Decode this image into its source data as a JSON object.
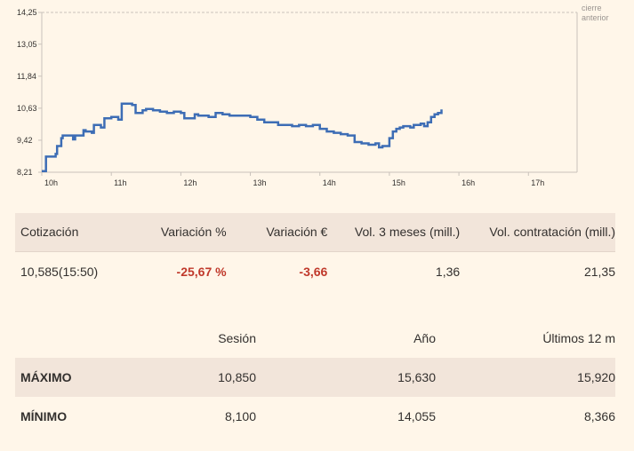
{
  "chart_data": {
    "type": "line",
    "y_ticks": [
      "14,25",
      "13,05",
      "11,84",
      "10,63",
      "9,42",
      "8,21"
    ],
    "y_tick_values": [
      14.25,
      13.05,
      11.84,
      10.63,
      9.42,
      8.21
    ],
    "x_ticks": [
      "10h",
      "11h",
      "12h",
      "13h",
      "14h",
      "15h",
      "16h",
      "17h"
    ],
    "x_tick_values": [
      10,
      11,
      12,
      13,
      14,
      15,
      16,
      17
    ],
    "xlim": [
      10,
      17.7
    ],
    "ylim": [
      8.21,
      14.25
    ],
    "reference_line": {
      "value": 14.25,
      "label_line1": "cierre",
      "label_line2": "anterior"
    },
    "series": [
      {
        "color": "#3d6db5",
        "x": [
          10.0,
          10.05,
          10.06,
          10.2,
          10.22,
          10.28,
          10.3,
          10.45,
          10.48,
          10.6,
          10.63,
          10.72,
          10.75,
          10.85,
          10.9,
          11.0,
          11.1,
          11.15,
          11.3,
          11.35,
          11.45,
          11.5,
          11.55,
          11.6,
          11.7,
          11.8,
          11.9,
          12.0,
          12.05,
          12.2,
          12.25,
          12.4,
          12.5,
          12.6,
          12.7,
          12.9,
          13.0,
          13.1,
          13.2,
          13.3,
          13.4,
          13.5,
          13.6,
          13.7,
          13.8,
          13.9,
          14.0,
          14.1,
          14.2,
          14.3,
          14.4,
          14.5,
          14.6,
          14.7,
          14.8,
          14.85,
          14.9,
          15.0,
          15.05,
          15.1,
          15.15,
          15.2,
          15.3,
          15.35,
          15.45,
          15.5,
          15.55,
          15.6,
          15.65,
          15.7,
          15.75
        ],
        "values": [
          8.25,
          8.25,
          8.8,
          8.9,
          9.2,
          9.5,
          9.6,
          9.45,
          9.6,
          9.8,
          9.75,
          9.7,
          10.0,
          9.9,
          10.25,
          10.3,
          10.2,
          10.8,
          10.75,
          10.45,
          10.55,
          10.6,
          10.6,
          10.55,
          10.5,
          10.45,
          10.5,
          10.45,
          10.25,
          10.4,
          10.35,
          10.3,
          10.45,
          10.4,
          10.35,
          10.35,
          10.3,
          10.2,
          10.1,
          10.1,
          10.0,
          10.0,
          9.95,
          10.0,
          9.95,
          10.0,
          9.85,
          9.75,
          9.7,
          9.65,
          9.6,
          9.35,
          9.3,
          9.25,
          9.3,
          9.15,
          9.2,
          9.5,
          9.75,
          9.85,
          9.9,
          9.95,
          9.9,
          10.0,
          10.05,
          9.95,
          10.1,
          10.3,
          10.4,
          10.45,
          10.585
        ]
      }
    ],
    "grid": false,
    "legend": "none"
  },
  "quote": {
    "headers": [
      "Cotización",
      "Variación %",
      "Variación €",
      "Vol. 3 meses (mill.)",
      "Vol. contratación (mill.)"
    ],
    "row": [
      "10,585(15:50)",
      "-25,67 %",
      "-3,66",
      "1,36",
      "21,35"
    ],
    "negative_color": "#c0392b"
  },
  "ranges": {
    "headers": [
      "",
      "Sesión",
      "Año",
      "Últimos 12 m"
    ],
    "rows": [
      [
        "MÁXIMO",
        "10,850",
        "15,630",
        "15,920"
      ],
      [
        "MÍNIMO",
        "8,100",
        "14,055",
        "8,366"
      ]
    ]
  }
}
